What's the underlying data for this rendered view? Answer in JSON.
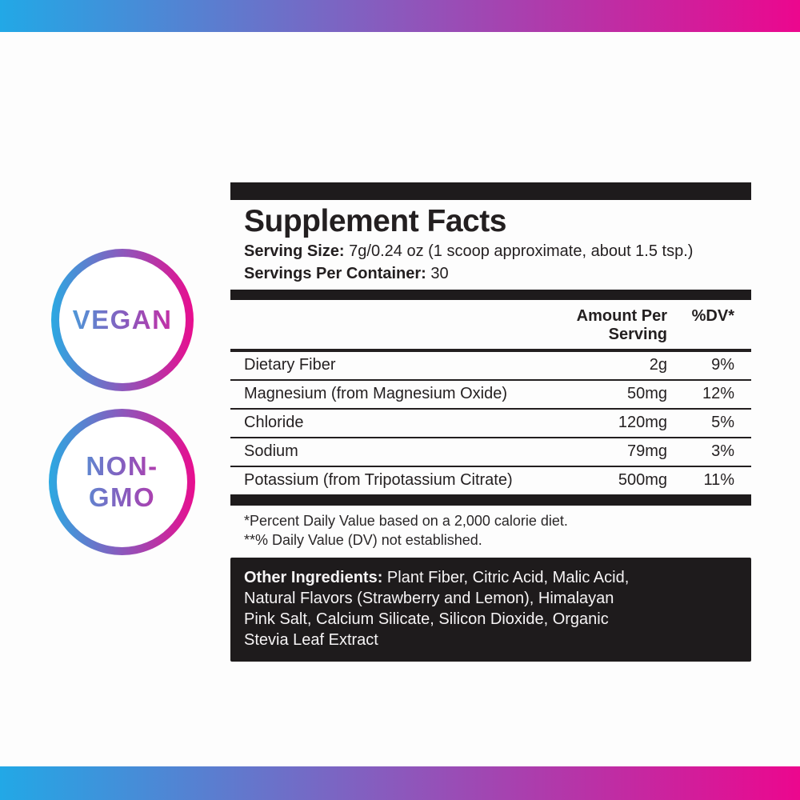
{
  "page": {
    "accent_gradient_from": "#29ABE2",
    "accent_gradient_to": "#EC008C",
    "panel_ink": "#231F20",
    "bar_black": "#1E1B1C"
  },
  "badges": [
    {
      "name": "vegan",
      "lines": [
        "VEGAN"
      ]
    },
    {
      "name": "non-gmo",
      "lines": [
        "NON-",
        "GMO"
      ]
    }
  ],
  "panel": {
    "title": "Supplement Facts",
    "serving_size_label": "Serving Size:",
    "serving_size_value": "7g/0.24 oz (1 scoop approximate, about 1.5 tsp.)",
    "servings_label": "Servings Per Container:",
    "servings_value": "30",
    "table": {
      "headers": {
        "amount": "Amount Per Serving",
        "dv": "%DV*"
      },
      "rows": [
        {
          "name": "Dietary Fiber",
          "amount": "2g",
          "dv": "9%"
        },
        {
          "name": "Magnesium (from Magnesium Oxide)",
          "amount": "50mg",
          "dv": "12%"
        },
        {
          "name": "Chloride",
          "amount": "120mg",
          "dv": "5%"
        },
        {
          "name": "Sodium",
          "amount": "79mg",
          "dv": "3%"
        },
        {
          "name": "Potassium (from Tripotassium Citrate)",
          "amount": "500mg",
          "dv": "11%"
        }
      ]
    },
    "footnotes": [
      "*Percent Daily Value based on a 2,000 calorie diet.",
      "**% Daily Value (DV) not established."
    ],
    "other_ingredients": {
      "label": "Other Ingredients:",
      "after_label": "Plant Fiber, Citric Acid, Malic Acid,",
      "lines": [
        "Natural Flavors (Strawberry and Lemon), Himalayan",
        "Pink Salt, Calcium Silicate, Silicon Dioxide, Organic",
        "Stevia Leaf Extract"
      ]
    }
  }
}
